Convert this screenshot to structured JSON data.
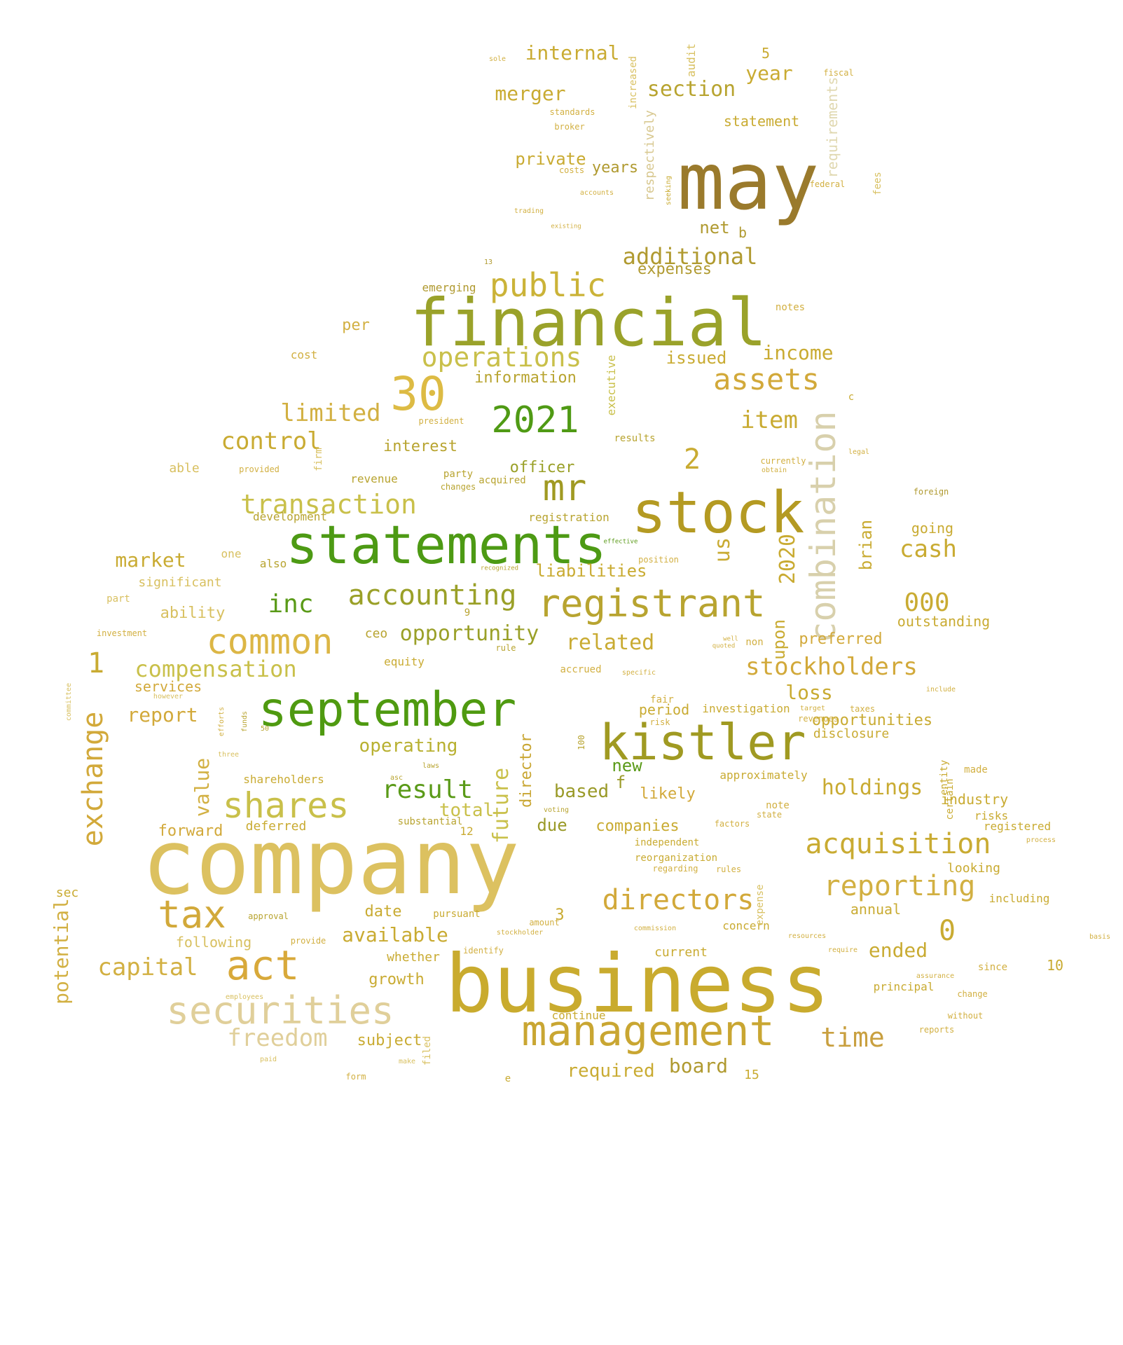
{
  "words": [
    {
      "text": "company",
      "color": "#dcc160",
      "v": false
    },
    {
      "text": "business",
      "color": "#c9ab2e",
      "v": false
    },
    {
      "text": "financial",
      "color": "#9aa22a",
      "v": false
    },
    {
      "text": "may",
      "color": "#9a7a2c",
      "v": false
    },
    {
      "text": "statements",
      "color": "#4d9a14",
      "v": false
    },
    {
      "text": "stock",
      "color": "#b49a22",
      "v": false
    },
    {
      "text": "september",
      "color": "#4f9a10",
      "v": false
    },
    {
      "text": "kistler",
      "color": "#a09a22",
      "v": false
    },
    {
      "text": "management",
      "color": "#c9a632",
      "v": false
    },
    {
      "text": "securities",
      "color": "#e0cf9a",
      "v": false
    },
    {
      "text": "registrant",
      "color": "#b8a430",
      "v": false
    },
    {
      "text": "combination",
      "color": "#d8d0ac",
      "v": true
    },
    {
      "text": "common",
      "color": "#dcb645",
      "v": false
    },
    {
      "text": "shares",
      "color": "#c9c04a",
      "v": false
    },
    {
      "text": "act",
      "color": "#d8a93a",
      "v": false
    },
    {
      "text": "tax",
      "color": "#d2a93a",
      "v": false
    },
    {
      "text": "30",
      "color": "#ddbb44",
      "v": false
    },
    {
      "text": "2021",
      "color": "#4f9a14",
      "v": false
    },
    {
      "text": "public",
      "color": "#cbb338",
      "v": false
    },
    {
      "text": "mr",
      "color": "#a09a22",
      "v": false
    },
    {
      "text": "accounting",
      "color": "#9aa028",
      "v": false
    },
    {
      "text": "acquisition",
      "color": "#c9ab32",
      "v": false
    },
    {
      "text": "directors",
      "color": "#d2a93a",
      "v": false
    },
    {
      "text": "reporting",
      "color": "#d2b042",
      "v": false
    },
    {
      "text": "operations",
      "color": "#c9c04a",
      "v": false
    },
    {
      "text": "assets",
      "color": "#d2a93a",
      "v": false
    },
    {
      "text": "transaction",
      "color": "#c9c04a",
      "v": false
    },
    {
      "text": "exchange",
      "color": "#d2a93a",
      "v": true
    },
    {
      "text": "time",
      "color": "#c9a040",
      "v": false
    },
    {
      "text": "freedom",
      "color": "#e0cf9a",
      "v": false
    },
    {
      "text": "capital",
      "color": "#d2b042",
      "v": false
    },
    {
      "text": "stockholders",
      "color": "#d2a93a",
      "v": false
    },
    {
      "text": "limited",
      "color": "#d2b042",
      "v": false
    },
    {
      "text": "control",
      "color": "#c9ab32",
      "v": false
    },
    {
      "text": "compensation",
      "color": "#c9c04a",
      "v": false
    },
    {
      "text": "additional",
      "color": "#b09a30",
      "v": false
    },
    {
      "text": "inc",
      "color": "#5a9a18",
      "v": false
    },
    {
      "text": "opportunity",
      "color": "#9aa028",
      "v": false
    },
    {
      "text": "result",
      "color": "#5a9a18",
      "v": false
    },
    {
      "text": "holdings",
      "color": "#c9ab32",
      "v": false
    },
    {
      "text": "cash",
      "color": "#c9ab32",
      "v": false
    },
    {
      "text": "item",
      "color": "#c9ab32",
      "v": false
    },
    {
      "text": "income",
      "color": "#c9ab32",
      "v": false
    },
    {
      "text": "merger",
      "color": "#c9ab32",
      "v": false
    },
    {
      "text": "section",
      "color": "#b8a430",
      "v": false
    },
    {
      "text": "internal",
      "color": "#c9ab32",
      "v": false
    },
    {
      "text": "year",
      "color": "#c9ab32",
      "v": false
    },
    {
      "text": "private",
      "color": "#c9ab32",
      "v": false
    },
    {
      "text": "years",
      "color": "#b09a30",
      "v": false
    },
    {
      "text": "statement",
      "color": "#c9ab32",
      "v": false
    },
    {
      "text": "requirements",
      "color": "#e0d8b0",
      "v": true
    },
    {
      "text": "respectively",
      "color": "#d8c890",
      "v": true
    },
    {
      "text": "net",
      "color": "#b09a30",
      "v": false
    },
    {
      "text": "expenses",
      "color": "#b09a30",
      "v": false
    },
    {
      "text": "market",
      "color": "#c9ab32",
      "v": false
    },
    {
      "text": "significant",
      "color": "#d8c060",
      "v": false
    },
    {
      "text": "ability",
      "color": "#d8c060",
      "v": false
    },
    {
      "text": "report",
      "color": "#d2a93a",
      "v": false
    },
    {
      "text": "value",
      "color": "#d2b042",
      "v": true
    },
    {
      "text": "forward",
      "color": "#d2a93a",
      "v": false
    },
    {
      "text": "deferred",
      "color": "#c9ab32",
      "v": false
    },
    {
      "text": "operating",
      "color": "#b8b030",
      "v": false
    },
    {
      "text": "future",
      "color": "#c9c04a",
      "v": true
    },
    {
      "text": "director",
      "color": "#c9a632",
      "v": true
    },
    {
      "text": "based",
      "color": "#9a9a28",
      "v": false
    },
    {
      "text": "total",
      "color": "#c9c04a",
      "v": false
    },
    {
      "text": "due",
      "color": "#9a9a28",
      "v": false
    },
    {
      "text": "companies",
      "color": "#c9ab32",
      "v": false
    },
    {
      "text": "likely",
      "color": "#d2a93a",
      "v": false
    },
    {
      "text": "new",
      "color": "#5a9a18",
      "v": false
    },
    {
      "text": "loss",
      "color": "#c9ab32",
      "v": false
    },
    {
      "text": "opportunities",
      "color": "#c9ab32",
      "v": false
    },
    {
      "text": "disclosure",
      "color": "#c9ab32",
      "v": false
    },
    {
      "text": "industry",
      "color": "#c9ab32",
      "v": false
    },
    {
      "text": "ended",
      "color": "#c9ab32",
      "v": false
    },
    {
      "text": "available",
      "color": "#c9ab32",
      "v": false
    },
    {
      "text": "required",
      "color": "#c9ab32",
      "v": false
    },
    {
      "text": "board",
      "color": "#b09a30",
      "v": false
    },
    {
      "text": "subject",
      "color": "#c9ab32",
      "v": false
    },
    {
      "text": "growth",
      "color": "#c9ab32",
      "v": false
    },
    {
      "text": "whether",
      "color": "#c9ab32",
      "v": false
    },
    {
      "text": "potential",
      "color": "#d2b042",
      "v": true
    },
    {
      "text": "following",
      "color": "#d8c060",
      "v": false
    },
    {
      "text": "date",
      "color": "#c9ab32",
      "v": false
    },
    {
      "text": "000",
      "color": "#c9ab32",
      "v": false
    },
    {
      "text": "outstanding",
      "color": "#c9ab32",
      "v": false
    },
    {
      "text": "preferred",
      "color": "#d2a93a",
      "v": false
    },
    {
      "text": "related",
      "color": "#c9ab32",
      "v": false
    },
    {
      "text": "liabilities",
      "color": "#c9ab32",
      "v": false
    },
    {
      "text": "registration",
      "color": "#b8a430",
      "v": false
    },
    {
      "text": "officer",
      "color": "#9aa028",
      "v": false
    },
    {
      "text": "interest",
      "color": "#b8a430",
      "v": false
    },
    {
      "text": "information",
      "color": "#b8a430",
      "v": false
    },
    {
      "text": "issued",
      "color": "#c9ab32",
      "v": false
    },
    {
      "text": "per",
      "color": "#d2b042",
      "v": false
    },
    {
      "text": "emerging",
      "color": "#b09a30",
      "v": false
    },
    {
      "text": "us",
      "color": "#c9ab32",
      "v": true
    },
    {
      "text": "2020",
      "color": "#c9ab32",
      "v": true
    },
    {
      "text": "brian",
      "color": "#c9ab32",
      "v": true
    },
    {
      "text": "upon",
      "color": "#c9ab32",
      "v": true
    },
    {
      "text": "going",
      "color": "#c9ab32",
      "v": false
    },
    {
      "text": "looking",
      "color": "#c9ab32",
      "v": false
    },
    {
      "text": "annual",
      "color": "#c9ab32",
      "v": false
    },
    {
      "text": "including",
      "color": "#c9ab32",
      "v": false
    },
    {
      "text": "current",
      "color": "#c9ab32",
      "v": false
    },
    {
      "text": "services",
      "color": "#d2a93a",
      "v": false
    },
    {
      "text": "shareholders",
      "color": "#c9ab32",
      "v": false
    },
    {
      "text": "equity",
      "color": "#c9ab32",
      "v": false
    },
    {
      "text": "revenue",
      "color": "#b8a430",
      "v": false
    },
    {
      "text": "development",
      "color": "#b8a430",
      "v": false
    },
    {
      "text": "period",
      "color": "#c9ab32",
      "v": false
    },
    {
      "text": "approximately",
      "color": "#c9ab32",
      "v": false
    },
    {
      "text": "registered",
      "color": "#c9ab32",
      "v": false
    },
    {
      "text": "risks",
      "color": "#c9ab32",
      "v": false
    },
    {
      "text": "investigation",
      "color": "#c9ab32",
      "v": false
    },
    {
      "text": "reorganization",
      "color": "#c9ab32",
      "v": false
    },
    {
      "text": "independent",
      "color": "#c9ab32",
      "v": false
    },
    {
      "text": "concern",
      "color": "#c9ab32",
      "v": false
    },
    {
      "text": "principal",
      "color": "#c9ab32",
      "v": false
    },
    {
      "text": "continue",
      "color": "#c9ab32",
      "v": false
    },
    {
      "text": "pursuant",
      "color": "#c9ab32",
      "v": false
    },
    {
      "text": "1",
      "color": "#c9ab32",
      "v": false
    },
    {
      "text": "2",
      "color": "#c9ab32",
      "v": false
    },
    {
      "text": "0",
      "color": "#c9ab32",
      "v": false
    },
    {
      "text": "3",
      "color": "#c9ab32",
      "v": false
    },
    {
      "text": "5",
      "color": "#c9ab32",
      "v": false
    },
    {
      "text": "10",
      "color": "#c9ab32",
      "v": false
    },
    {
      "text": "15",
      "color": "#c9ab32",
      "v": false
    },
    {
      "text": "12",
      "color": "#c9ab32",
      "v": false
    },
    {
      "text": "f",
      "color": "#9a9a28",
      "v": false
    },
    {
      "text": "b",
      "color": "#b09a30",
      "v": false
    },
    {
      "text": "c",
      "color": "#c9ab32",
      "v": false
    },
    {
      "text": "e",
      "color": "#c9ab32",
      "v": false
    },
    {
      "text": "sec",
      "color": "#c9ab32",
      "v": false
    },
    {
      "text": "ceo",
      "color": "#b8a430",
      "v": false
    },
    {
      "text": "cost",
      "color": "#d2b042",
      "v": false
    },
    {
      "text": "able",
      "color": "#d8c060",
      "v": false
    },
    {
      "text": "one",
      "color": "#d8c060",
      "v": false
    },
    {
      "text": "also",
      "color": "#b8a430",
      "v": false
    },
    {
      "text": "part",
      "color": "#d8c060",
      "v": false
    },
    {
      "text": "investment",
      "color": "#d2b042",
      "v": false
    },
    {
      "text": "fees",
      "color": "#d8c060",
      "v": true
    },
    {
      "text": "audit",
      "color": "#d8c060",
      "v": true
    },
    {
      "text": "increased",
      "color": "#d8c060",
      "v": true
    },
    {
      "text": "executive",
      "color": "#c9c04a",
      "v": true
    },
    {
      "text": "expense",
      "color": "#d8c060",
      "v": true
    },
    {
      "text": "entity",
      "color": "#c9ab32",
      "v": true
    },
    {
      "text": "certain",
      "color": "#c9ab32",
      "v": true
    },
    {
      "text": "filed",
      "color": "#d8c060",
      "v": true
    },
    {
      "text": "firm",
      "color": "#d8c060",
      "v": true
    },
    {
      "text": "standards",
      "color": "#d2b042",
      "v": false
    },
    {
      "text": "broker",
      "color": "#d2b042",
      "v": false
    },
    {
      "text": "costs",
      "color": "#d2b042",
      "v": false
    },
    {
      "text": "accounts",
      "color": "#d2b042",
      "v": false
    },
    {
      "text": "trading",
      "color": "#d2b042",
      "v": false
    },
    {
      "text": "existing",
      "color": "#d2b042",
      "v": false
    },
    {
      "text": "fiscal",
      "color": "#d2b042",
      "v": false
    },
    {
      "text": "federal",
      "color": "#d2b042",
      "v": false
    },
    {
      "text": "notes",
      "color": "#d2b042",
      "v": false
    },
    {
      "text": "results",
      "color": "#b8a430",
      "v": false
    },
    {
      "text": "provided",
      "color": "#d2b042",
      "v": false
    },
    {
      "text": "acquired",
      "color": "#b8a430",
      "v": false
    },
    {
      "text": "changes",
      "color": "#b8a430",
      "v": false
    },
    {
      "text": "party",
      "color": "#b8a430",
      "v": false
    },
    {
      "text": "president",
      "color": "#d2b042",
      "v": false
    },
    {
      "text": "currently",
      "color": "#d2b042",
      "v": false
    },
    {
      "text": "obtain",
      "color": "#d2b042",
      "v": false
    },
    {
      "text": "legal",
      "color": "#d2b042",
      "v": false
    },
    {
      "text": "foreign",
      "color": "#b09a30",
      "v": false
    },
    {
      "text": "position",
      "color": "#d2b042",
      "v": false
    },
    {
      "text": "non",
      "color": "#d2b042",
      "v": false
    },
    {
      "text": "accrued",
      "color": "#d2b042",
      "v": false
    },
    {
      "text": "specific",
      "color": "#d2b042",
      "v": false
    },
    {
      "text": "fair",
      "color": "#d2b042",
      "v": false
    },
    {
      "text": "risk",
      "color": "#d2b042",
      "v": false
    },
    {
      "text": "revenues",
      "color": "#d2b042",
      "v": false
    },
    {
      "text": "taxes",
      "color": "#d2b042",
      "v": false
    },
    {
      "text": "target",
      "color": "#d2b042",
      "v": false
    },
    {
      "text": "note",
      "color": "#d2b042",
      "v": false
    },
    {
      "text": "state",
      "color": "#d2b042",
      "v": false
    },
    {
      "text": "factors",
      "color": "#d2b042",
      "v": false
    },
    {
      "text": "regarding",
      "color": "#d2b042",
      "v": false
    },
    {
      "text": "rules",
      "color": "#d2b042",
      "v": false
    },
    {
      "text": "made",
      "color": "#d2b042",
      "v": false
    },
    {
      "text": "include",
      "color": "#d2b042",
      "v": false
    },
    {
      "text": "since",
      "color": "#d2b042",
      "v": false
    },
    {
      "text": "change",
      "color": "#d2b042",
      "v": false
    },
    {
      "text": "without",
      "color": "#d2b042",
      "v": false
    },
    {
      "text": "reports",
      "color": "#d2b042",
      "v": false
    },
    {
      "text": "assurance",
      "color": "#d2b042",
      "v": false
    },
    {
      "text": "process",
      "color": "#d2b042",
      "v": false
    },
    {
      "text": "commission",
      "color": "#d2b042",
      "v": false
    },
    {
      "text": "resources",
      "color": "#d2b042",
      "v": false
    },
    {
      "text": "require",
      "color": "#d2b042",
      "v": false
    },
    {
      "text": "amount",
      "color": "#d2b042",
      "v": false
    },
    {
      "text": "approval",
      "color": "#b8a430",
      "v": false
    },
    {
      "text": "stockholder",
      "color": "#d2b042",
      "v": false
    },
    {
      "text": "provide",
      "color": "#d2b042",
      "v": false
    },
    {
      "text": "identify",
      "color": "#d2b042",
      "v": false
    },
    {
      "text": "laws",
      "color": "#b8a430",
      "v": false
    },
    {
      "text": "asc",
      "color": "#b8a430",
      "v": false
    },
    {
      "text": "substantial",
      "color": "#b8a430",
      "v": false
    },
    {
      "text": "voting",
      "color": "#b8a430",
      "v": false
    },
    {
      "text": "rule",
      "color": "#b8a430",
      "v": false
    },
    {
      "text": "funds",
      "color": "#b8a430",
      "v": true
    },
    {
      "text": "efforts",
      "color": "#d2b042",
      "v": true
    },
    {
      "text": "employees",
      "color": "#d8c060",
      "v": false
    },
    {
      "text": "form",
      "color": "#d2b042",
      "v": false
    },
    {
      "text": "make",
      "color": "#d8c060",
      "v": false
    },
    {
      "text": "paid",
      "color": "#d8c060",
      "v": false
    },
    {
      "text": "however",
      "color": "#d8c060",
      "v": false
    },
    {
      "text": "100",
      "color": "#b8a430",
      "v": true
    },
    {
      "text": "50",
      "color": "#b8a430",
      "v": false
    },
    {
      "text": "9",
      "color": "#b8a430",
      "v": false
    },
    {
      "text": "13",
      "color": "#b09a30",
      "v": false
    },
    {
      "text": "basis",
      "color": "#d2b042",
      "v": false
    },
    {
      "text": "committee",
      "color": "#d8c060",
      "v": true
    },
    {
      "text": "seeking",
      "color": "#c9ab32",
      "v": true
    },
    {
      "text": "three",
      "color": "#d8c060",
      "v": false
    },
    {
      "text": "sole",
      "color": "#d2b042",
      "v": false
    },
    {
      "text": "quoted",
      "color": "#d2b042",
      "v": false
    },
    {
      "text": "well",
      "color": "#d2b042",
      "v": false
    },
    {
      "text": "recognized",
      "color": "#b8a430",
      "v": false
    },
    {
      "text": "effective",
      "color": "#5a9a18",
      "v": false
    }
  ]
}
